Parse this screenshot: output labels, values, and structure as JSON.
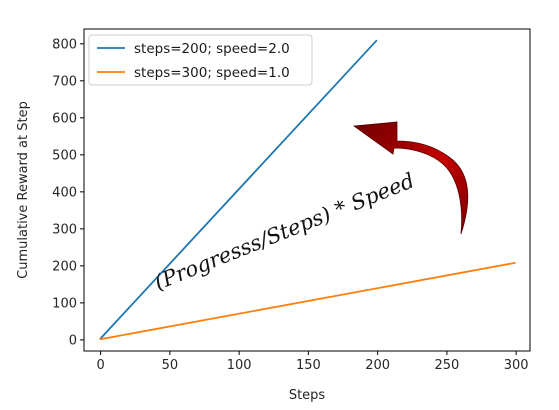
{
  "chart_data": {
    "type": "line",
    "xlabel": "Steps",
    "ylabel": "Cumulative Reward at Step",
    "xlim": [
      -12,
      310
    ],
    "ylim": [
      -30,
      840
    ],
    "xticks": [
      0,
      50,
      100,
      150,
      200,
      250,
      300
    ],
    "yticks": [
      0,
      100,
      200,
      300,
      400,
      500,
      600,
      700,
      800
    ],
    "grid": false,
    "legend_position": "top-left",
    "series": [
      {
        "name": "steps=200; speed=2.0",
        "color": "#1f77b4",
        "x": [
          0,
          199
        ],
        "y": [
          4,
          808
        ]
      },
      {
        "name": "steps=300; speed=1.0",
        "color": "#ff7f0e",
        "x": [
          0,
          299
        ],
        "y": [
          2,
          208
        ]
      }
    ],
    "annotation": {
      "text": "(Progresss/Steps) * Speed",
      "arrow_color": "#b30000"
    }
  }
}
